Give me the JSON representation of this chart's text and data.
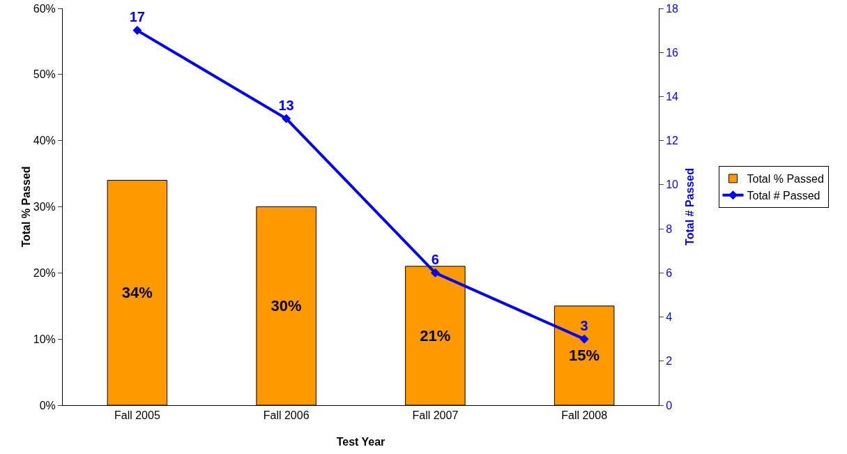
{
  "chart_data": {
    "type": "bar",
    "xlabel": "Test Year",
    "ylabel": "Total % Passed",
    "y2label": "Total # Passed",
    "categories": [
      "Fall 2005",
      "Fall 2006",
      "Fall 2007",
      "Fall 2008"
    ],
    "series": [
      {
        "name": "Total % Passed",
        "color": "#ff9900",
        "values": [
          34,
          30,
          21,
          15
        ],
        "value_labels": [
          "34%",
          "30%",
          "21%",
          "15%"
        ]
      },
      {
        "name": "Total # Passed",
        "type": "line",
        "axis": "y2",
        "color": "#0000ff",
        "values": [
          17,
          13,
          6,
          3
        ],
        "value_labels": [
          "17",
          "13",
          "6",
          "3"
        ]
      }
    ],
    "ylim": [
      0,
      60
    ],
    "yticks": [
      {
        "value": 0,
        "label": "0%"
      },
      {
        "value": 10,
        "label": "10%"
      },
      {
        "value": 20,
        "label": "20%"
      },
      {
        "value": 30,
        "label": "30%"
      },
      {
        "value": 40,
        "label": "40%"
      },
      {
        "value": 50,
        "label": "50%"
      },
      {
        "value": 60,
        "label": "60%"
      }
    ],
    "y2lim": [
      0,
      18
    ],
    "y2ticks": [
      0,
      2,
      4,
      6,
      8,
      10,
      12,
      14,
      16,
      18
    ],
    "grid": false,
    "legend": "right",
    "marker": "diamond",
    "line_style": "solid"
  }
}
